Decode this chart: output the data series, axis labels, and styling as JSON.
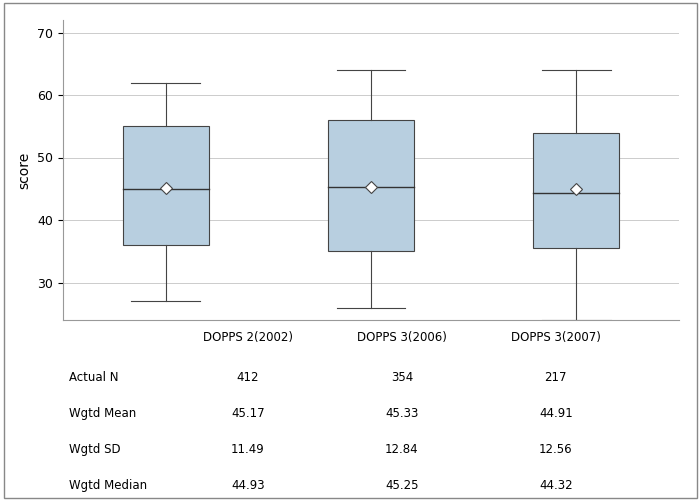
{
  "categories": [
    "DOPPS 2(2002)",
    "DOPPS 3(2006)",
    "DOPPS 3(2007)"
  ],
  "boxes": [
    {
      "q1": 36.0,
      "median": 44.93,
      "q3": 55.0,
      "whisker_low": 27.0,
      "whisker_high": 62.0,
      "mean": 45.17
    },
    {
      "q1": 35.0,
      "median": 45.25,
      "q3": 56.0,
      "whisker_low": 26.0,
      "whisker_high": 64.0,
      "mean": 45.33
    },
    {
      "q1": 35.5,
      "median": 44.32,
      "q3": 54.0,
      "whisker_low": 24.0,
      "whisker_high": 64.0,
      "mean": 44.91
    }
  ],
  "ylim": [
    24,
    72
  ],
  "yticks": [
    30,
    40,
    50,
    60,
    70
  ],
  "ylabel": "score",
  "box_color": "#b8cfe0",
  "box_edge_color": "#444444",
  "whisker_color": "#444444",
  "median_color": "#333333",
  "mean_marker_color": "white",
  "mean_marker_edge_color": "#444444",
  "grid_color": "#cccccc",
  "background_color": "#ffffff",
  "table_rows": [
    "Actual N",
    "Wgtd Mean",
    "Wgtd SD",
    "Wgtd Median"
  ],
  "table_data": [
    [
      "412",
      "45.17",
      "11.49",
      "44.93"
    ],
    [
      "354",
      "45.33",
      "12.84",
      "45.25"
    ],
    [
      "217",
      "44.91",
      "12.56",
      "44.32"
    ]
  ],
  "box_width": 0.42,
  "fig_width": 7.0,
  "fig_height": 5.0
}
